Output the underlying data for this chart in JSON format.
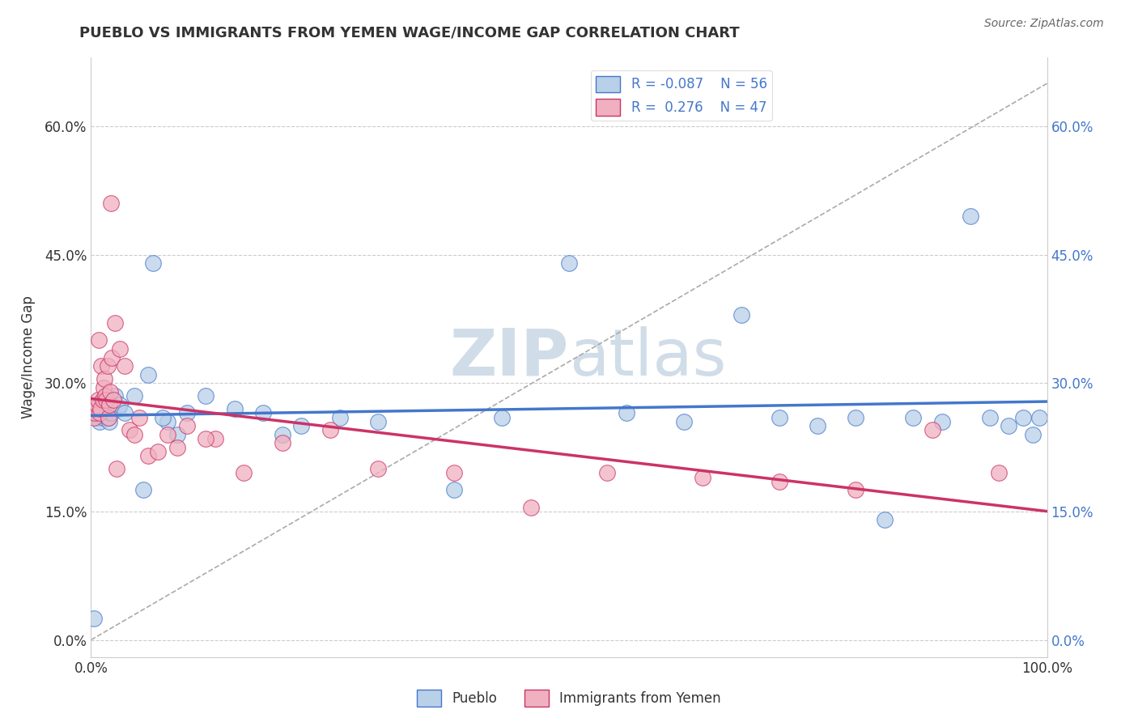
{
  "title": "PUEBLO VS IMMIGRANTS FROM YEMEN WAGE/INCOME GAP CORRELATION CHART",
  "source": "Source: ZipAtlas.com",
  "ylabel": "Wage/Income Gap",
  "xlim": [
    0.0,
    1.0
  ],
  "ylim": [
    -0.02,
    0.68
  ],
  "yticks": [
    0.0,
    0.15,
    0.3,
    0.45,
    0.6
  ],
  "ytick_labels": [
    "0.0%",
    "15.0%",
    "30.0%",
    "45.0%",
    "60.0%"
  ],
  "xticks": [
    0.0,
    0.25,
    0.5,
    0.75,
    1.0
  ],
  "xtick_labels": [
    "0.0%",
    "",
    "",
    "",
    "100.0%"
  ],
  "pueblo_color": "#b8d0e8",
  "yemen_color": "#f0b0c0",
  "pueblo_line_color": "#4477cc",
  "yemen_line_color": "#cc3366",
  "pueblo_x": [
    0.003,
    0.005,
    0.006,
    0.007,
    0.008,
    0.009,
    0.01,
    0.011,
    0.012,
    0.013,
    0.014,
    0.015,
    0.016,
    0.017,
    0.018,
    0.019,
    0.02,
    0.021,
    0.022,
    0.025,
    0.028,
    0.03,
    0.035,
    0.06,
    0.08,
    0.1,
    0.12,
    0.15,
    0.18,
    0.22,
    0.26,
    0.3,
    0.38,
    0.43,
    0.5,
    0.56,
    0.62,
    0.68,
    0.72,
    0.76,
    0.8,
    0.83,
    0.86,
    0.89,
    0.92,
    0.94,
    0.96,
    0.975,
    0.985,
    0.992,
    0.045,
    0.055,
    0.065,
    0.075,
    0.09,
    0.2
  ],
  "pueblo_y": [
    0.025,
    0.27,
    0.265,
    0.275,
    0.26,
    0.255,
    0.275,
    0.27,
    0.28,
    0.26,
    0.265,
    0.28,
    0.27,
    0.26,
    0.26,
    0.255,
    0.265,
    0.27,
    0.265,
    0.285,
    0.27,
    0.275,
    0.265,
    0.31,
    0.255,
    0.265,
    0.285,
    0.27,
    0.265,
    0.25,
    0.26,
    0.255,
    0.175,
    0.26,
    0.44,
    0.265,
    0.255,
    0.38,
    0.26,
    0.25,
    0.26,
    0.14,
    0.26,
    0.255,
    0.495,
    0.26,
    0.25,
    0.26,
    0.24,
    0.26,
    0.285,
    0.175,
    0.44,
    0.26,
    0.24,
    0.24
  ],
  "yemen_x": [
    0.003,
    0.004,
    0.005,
    0.006,
    0.007,
    0.008,
    0.009,
    0.01,
    0.011,
    0.012,
    0.013,
    0.014,
    0.015,
    0.016,
    0.017,
    0.018,
    0.019,
    0.02,
    0.021,
    0.022,
    0.023,
    0.025,
    0.027,
    0.03,
    0.035,
    0.04,
    0.05,
    0.06,
    0.08,
    0.1,
    0.13,
    0.16,
    0.2,
    0.25,
    0.3,
    0.38,
    0.46,
    0.54,
    0.64,
    0.72,
    0.8,
    0.88,
    0.95,
    0.045,
    0.07,
    0.09,
    0.12
  ],
  "yemen_y": [
    0.26,
    0.265,
    0.27,
    0.275,
    0.28,
    0.35,
    0.265,
    0.27,
    0.32,
    0.28,
    0.295,
    0.305,
    0.285,
    0.28,
    0.32,
    0.26,
    0.275,
    0.29,
    0.51,
    0.33,
    0.28,
    0.37,
    0.2,
    0.34,
    0.32,
    0.245,
    0.26,
    0.215,
    0.24,
    0.25,
    0.235,
    0.195,
    0.23,
    0.245,
    0.2,
    0.195,
    0.155,
    0.195,
    0.19,
    0.185,
    0.175,
    0.245,
    0.195,
    0.24,
    0.22,
    0.225,
    0.235
  ],
  "bg_color": "#ffffff",
  "grid_color": "#cccccc",
  "title_color": "#333333",
  "watermark_color": "#d0dde8",
  "right_tick_color": "#4477cc"
}
